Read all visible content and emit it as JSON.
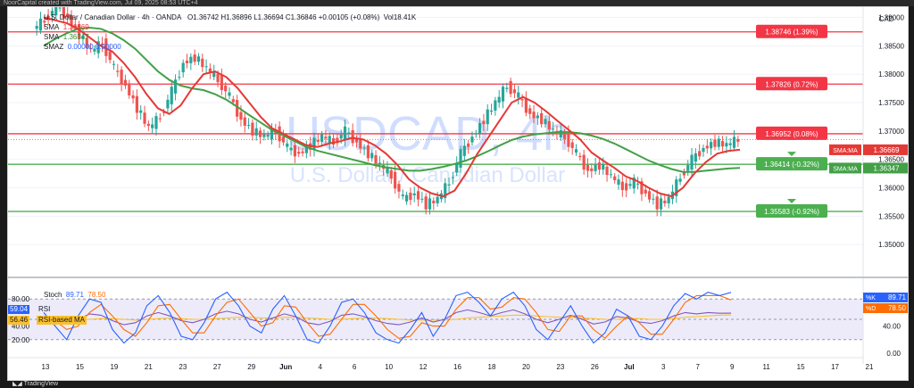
{
  "header": {
    "caption": "NoorCapital created with TradingView.com, Jul 09, 2025 08:53 UTC+4",
    "currency": "CAD"
  },
  "symbol": {
    "name": "U.S. Dollar / Canadian Dollar · 4h · OANDA",
    "ohlc": "O1.36742  H1.36896  L1.36694  C1.36846  +0.00105 (+0.08%)",
    "volume": "Vol18.41K",
    "watermark_title": "USDCAD, 4h",
    "watermark_subtitle": "U.S. Dollar / Canadian Dollar"
  },
  "indicators": {
    "sma1_label": "SMA",
    "sma1_value": "1.36669",
    "sma2_label": "SMA",
    "sma2_value": "1.36347",
    "smaz_label": "SMAZ",
    "smaz_values": "0.00000  0.00000"
  },
  "oscillator": {
    "stoch_label": "Stoch",
    "stoch_k": "89.71",
    "stoch_d": "78.50",
    "rsi_label": "RSI",
    "rsi_value": "59.04",
    "rsi_ma_label": "RSI-based MA",
    "rsi_ma_value": "56.46",
    "axis_ticks": [
      "80.00",
      "40.00",
      "20.00"
    ],
    "right_ticks": [
      "40.00",
      "0.00"
    ],
    "k_tag": "%K",
    "d_tag": "%D"
  },
  "colors": {
    "candle_up": "#26a69a",
    "candle_down": "#ef5350",
    "sma_fast": "#e53935",
    "sma_slow": "#43a047",
    "resistance": "#f23645",
    "support": "#4caf50",
    "stoch_k": "#2962ff",
    "stoch_d": "#ff6d00",
    "rsi": "#7e57c2",
    "rsi_ma": "#fbc02d",
    "band": "#e6e3f7"
  },
  "footer": {
    "brand": "TradingView"
  },
  "chart_data": {
    "type": "candlestick",
    "y_range": [
      1.345,
      1.3915
    ],
    "price_ticks": [
      "1.39000",
      "1.38500",
      "1.38000",
      "1.37500",
      "1.37000",
      "1.36500",
      "1.36000",
      "1.35500",
      "1.35000"
    ],
    "x_ticks": [
      "13",
      "15",
      "19",
      "21",
      "23",
      "27",
      "29",
      "Jun",
      "4",
      "6",
      "10",
      "12",
      "16",
      "18",
      "20",
      "23",
      "26",
      "Jul",
      "3",
      "7",
      "9",
      "11",
      "15",
      "17",
      "21"
    ],
    "levels": [
      {
        "value": 1.38746,
        "label": "1.38746 (1.39%)",
        "kind": "resistance"
      },
      {
        "value": 1.37826,
        "label": "1.37826 (0.72%)",
        "kind": "resistance"
      },
      {
        "value": 1.36952,
        "label": "1.36952 (0.08%)",
        "kind": "resistance"
      },
      {
        "value": 1.36414,
        "label": "1.36414 (-0.32%)",
        "kind": "support"
      },
      {
        "value": 1.35583,
        "label": "1.35583 (-0.92%)",
        "kind": "support"
      }
    ],
    "price_tags": [
      {
        "label": "SMA:MA",
        "value": "1.36669"
      },
      {
        "label": "SMA:MA",
        "value": "1.36347"
      }
    ],
    "close_path": [
      1.388,
      1.3895,
      1.392,
      1.39,
      1.387,
      1.384,
      1.3855,
      1.381,
      1.378,
      1.374,
      1.3705,
      1.3725,
      1.377,
      1.382,
      1.383,
      1.381,
      1.379,
      1.376,
      1.372,
      1.37,
      1.369,
      1.37,
      1.367,
      1.366,
      1.3675,
      1.369,
      1.368,
      1.37,
      1.368,
      1.366,
      1.364,
      1.362,
      1.358,
      1.359,
      1.357,
      1.358,
      1.361,
      1.366,
      1.369,
      1.372,
      1.375,
      1.378,
      1.376,
      1.373,
      1.372,
      1.37,
      1.369,
      1.366,
      1.363,
      1.364,
      1.362,
      1.36,
      1.361,
      1.359,
      1.357,
      1.358,
      1.362,
      1.365,
      1.367,
      1.368,
      1.3675,
      1.3685
    ],
    "sma_fast": [
      1.39,
      1.3895,
      1.389,
      1.388,
      1.3865,
      1.385,
      1.384,
      1.382,
      1.3795,
      1.3765,
      1.374,
      1.373,
      1.3745,
      1.3775,
      1.38,
      1.3805,
      1.3795,
      1.3775,
      1.375,
      1.3725,
      1.3705,
      1.3695,
      1.3685,
      1.3675,
      1.3672,
      1.3678,
      1.3682,
      1.3688,
      1.3685,
      1.3675,
      1.366,
      1.364,
      1.3615,
      1.36,
      1.359,
      1.3585,
      1.3595,
      1.3625,
      1.366,
      1.369,
      1.372,
      1.375,
      1.376,
      1.375,
      1.3735,
      1.3718,
      1.3702,
      1.3685,
      1.3662,
      1.3648,
      1.3635,
      1.362,
      1.3612,
      1.36,
      1.359,
      1.3585,
      1.36,
      1.3625,
      1.3645,
      1.366,
      1.3665,
      1.3667
    ],
    "sma_slow": [
      1.385,
      1.3862,
      1.3872,
      1.388,
      1.3882,
      1.388,
      1.3872,
      1.386,
      1.3845,
      1.3825,
      1.3805,
      1.379,
      1.378,
      1.3775,
      1.3772,
      1.3765,
      1.3755,
      1.3742,
      1.3728,
      1.3715,
      1.3702,
      1.3692,
      1.3682,
      1.3672,
      1.3665,
      1.366,
      1.3655,
      1.365,
      1.3645,
      1.364,
      1.3636,
      1.3633,
      1.363,
      1.363,
      1.3633,
      1.3637,
      1.3642,
      1.3648,
      1.3656,
      1.3665,
      1.3675,
      1.3684,
      1.369,
      1.3694,
      1.3696,
      1.3698,
      1.3698,
      1.3696,
      1.3692,
      1.3686,
      1.3678,
      1.3668,
      1.3658,
      1.3648,
      1.364,
      1.3633,
      1.3628,
      1.3628,
      1.363,
      1.3632,
      1.3634,
      1.3635
    ],
    "stoch_k": [
      60,
      40,
      20,
      55,
      80,
      75,
      35,
      15,
      30,
      70,
      85,
      60,
      25,
      20,
      45,
      80,
      90,
      70,
      40,
      30,
      65,
      85,
      55,
      20,
      15,
      40,
      75,
      80,
      60,
      30,
      20,
      15,
      35,
      60,
      25,
      50,
      85,
      90,
      75,
      55,
      80,
      90,
      70,
      35,
      20,
      45,
      70,
      40,
      15,
      30,
      65,
      55,
      25,
      20,
      40,
      70,
      88,
      80,
      90,
      85,
      89.71
    ],
    "stoch_d": [
      55,
      48,
      35,
      40,
      60,
      72,
      55,
      35,
      25,
      45,
      70,
      72,
      50,
      30,
      30,
      55,
      75,
      80,
      60,
      40,
      45,
      70,
      68,
      45,
      25,
      28,
      50,
      72,
      72,
      55,
      35,
      22,
      25,
      45,
      40,
      40,
      65,
      82,
      82,
      65,
      68,
      82,
      80,
      60,
      35,
      32,
      55,
      55,
      35,
      22,
      40,
      55,
      45,
      28,
      28,
      50,
      75,
      85,
      85,
      85,
      78.5
    ],
    "rsi": [
      55,
      50,
      45,
      50,
      58,
      56,
      48,
      42,
      45,
      55,
      60,
      55,
      48,
      45,
      50,
      58,
      62,
      58,
      50,
      46,
      52,
      58,
      54,
      45,
      42,
      47,
      56,
      58,
      54,
      48,
      44,
      42,
      46,
      52,
      46,
      50,
      60,
      64,
      60,
      55,
      60,
      64,
      58,
      50,
      45,
      50,
      56,
      50,
      43,
      46,
      54,
      52,
      46,
      44,
      48,
      55,
      60,
      58,
      60,
      59,
      59.04
    ],
    "rsi_ma": [
      52,
      51,
      50,
      49,
      50,
      51,
      51,
      50,
      49,
      50,
      51,
      52,
      51,
      50,
      50,
      51,
      52,
      53,
      53,
      52,
      52,
      53,
      53,
      52,
      51,
      50,
      50,
      51,
      52,
      52,
      51,
      50,
      49,
      49,
      49,
      49,
      50,
      52,
      53,
      54,
      55,
      56,
      56,
      55,
      54,
      53,
      53,
      52,
      51,
      50,
      50,
      51,
      51,
      50,
      50,
      51,
      53,
      54,
      55,
      56,
      56.46
    ]
  }
}
